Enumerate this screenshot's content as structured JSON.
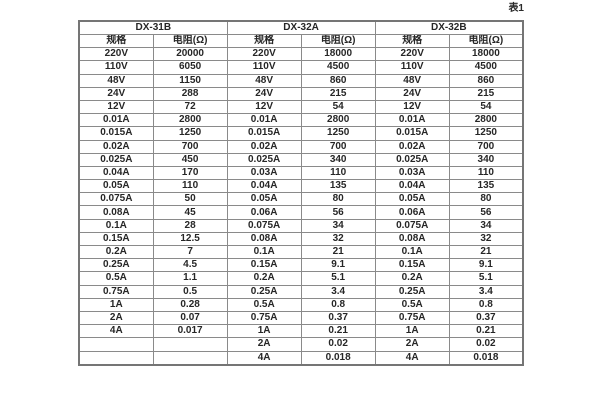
{
  "caption": "表1",
  "colors": {
    "background": "#ffffff",
    "border": "#8a8a8a",
    "outer_border": "#757575",
    "text": "#262626"
  },
  "table": {
    "groups": [
      {
        "name": "DX-31B",
        "spec_header": "规格",
        "resistance_header": "电阻(Ω)"
      },
      {
        "name": "DX-32A",
        "spec_header": "规格",
        "resistance_header": "电阻(Ω)"
      },
      {
        "name": "DX-32B",
        "spec_header": "规格",
        "resistance_header": "电阻(Ω)"
      }
    ],
    "rows": [
      [
        "220V",
        "20000",
        "220V",
        "18000",
        "220V",
        "18000"
      ],
      [
        "110V",
        "6050",
        "110V",
        "4500",
        "110V",
        "4500"
      ],
      [
        "48V",
        "1150",
        "48V",
        "860",
        "48V",
        "860"
      ],
      [
        "24V",
        "288",
        "24V",
        "215",
        "24V",
        "215"
      ],
      [
        "12V",
        "72",
        "12V",
        "54",
        "12V",
        "54"
      ],
      [
        "0.01A",
        "2800",
        "0.01A",
        "2800",
        "0.01A",
        "2800"
      ],
      [
        "0.015A",
        "1250",
        "0.015A",
        "1250",
        "0.015A",
        "1250"
      ],
      [
        "0.02A",
        "700",
        "0.02A",
        "700",
        "0.02A",
        "700"
      ],
      [
        "0.025A",
        "450",
        "0.025A",
        "340",
        "0.025A",
        "340"
      ],
      [
        "0.04A",
        "170",
        "0.03A",
        "110",
        "0.03A",
        "110"
      ],
      [
        "0.05A",
        "110",
        "0.04A",
        "135",
        "0.04A",
        "135"
      ],
      [
        "0.075A",
        "50",
        "0.05A",
        "80",
        "0.05A",
        "80"
      ],
      [
        "0.08A",
        "45",
        "0.06A",
        "56",
        "0.06A",
        "56"
      ],
      [
        "0.1A",
        "28",
        "0.075A",
        "34",
        "0.075A",
        "34"
      ],
      [
        "0.15A",
        "12.5",
        "0.08A",
        "32",
        "0.08A",
        "32"
      ],
      [
        "0.2A",
        "7",
        "0.1A",
        "21",
        "0.1A",
        "21"
      ],
      [
        "0.25A",
        "4.5",
        "0.15A",
        "9.1",
        "0.15A",
        "9.1"
      ],
      [
        "0.5A",
        "1.1",
        "0.2A",
        "5.1",
        "0.2A",
        "5.1"
      ],
      [
        "0.75A",
        "0.5",
        "0.25A",
        "3.4",
        "0.25A",
        "3.4"
      ],
      [
        "1A",
        "0.28",
        "0.5A",
        "0.8",
        "0.5A",
        "0.8"
      ],
      [
        "2A",
        "0.07",
        "0.75A",
        "0.37",
        "0.75A",
        "0.37"
      ],
      [
        "4A",
        "0.017",
        "1A",
        "0.21",
        "1A",
        "0.21"
      ],
      [
        "",
        "",
        "2A",
        "0.02",
        "2A",
        "0.02"
      ],
      [
        "",
        "",
        "4A",
        "0.018",
        "4A",
        "0.018"
      ]
    ]
  }
}
